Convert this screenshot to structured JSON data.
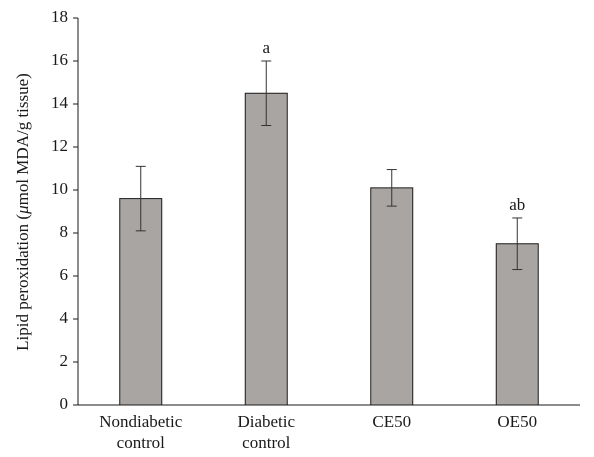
{
  "chart_data": {
    "type": "bar",
    "ylabel_prefix": "Lipid peroxidation (",
    "ylabel_mu": "μ",
    "ylabel_suffix": "mol MDA/g tissue)",
    "categories": [
      [
        "Nondiabetic",
        "control"
      ],
      [
        "Diabetic",
        "control"
      ],
      [
        "CE50"
      ],
      [
        "OE50"
      ]
    ],
    "values": [
      9.6,
      14.5,
      10.1,
      7.5
    ],
    "errors": [
      1.5,
      1.5,
      0.85,
      1.2
    ],
    "annotations": [
      "",
      "a",
      "",
      "ab"
    ],
    "ylim": [
      0,
      18
    ],
    "yticks": [
      0,
      2,
      4,
      6,
      8,
      10,
      12,
      14,
      16,
      18
    ],
    "grid": false,
    "bar_color": "#a8a5a2",
    "bar_edge_color": "#1a1a1a"
  }
}
